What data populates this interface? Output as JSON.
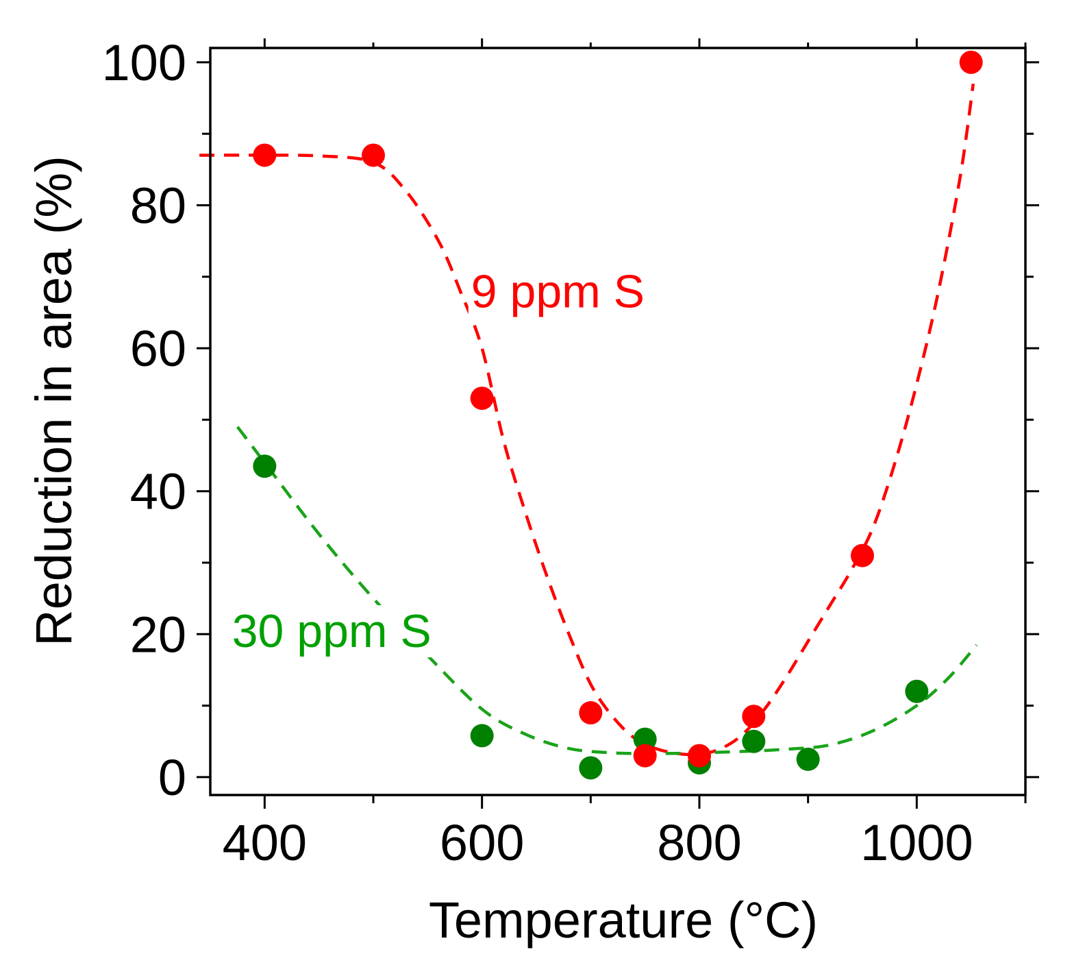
{
  "chart_data": {
    "type": "scatter",
    "title": "",
    "xlabel": "Temperature (°C)",
    "ylabel": "Reduction in area (%)",
    "xlim": [
      350,
      1100
    ],
    "ylim": [
      -2.5,
      102
    ],
    "xticks_major": [
      400,
      600,
      800,
      1000
    ],
    "xticks_minor": [
      500,
      700,
      900,
      1100
    ],
    "yticks_major": [
      0,
      20,
      40,
      60,
      80,
      100
    ],
    "yticks_minor": [
      10,
      30,
      50,
      70,
      90
    ],
    "grid": false,
    "series": [
      {
        "name": "9 ppm S",
        "color": "#ff0000",
        "points": [
          {
            "x": 400,
            "y": 87
          },
          {
            "x": 500,
            "y": 87
          },
          {
            "x": 600,
            "y": 53
          },
          {
            "x": 700,
            "y": 9
          },
          {
            "x": 750,
            "y": 3
          },
          {
            "x": 800,
            "y": 3
          },
          {
            "x": 850,
            "y": 8.5
          },
          {
            "x": 950,
            "y": 31
          },
          {
            "x": 1050,
            "y": 100
          }
        ],
        "fit_curve": [
          [
            340,
            87
          ],
          [
            400,
            87
          ],
          [
            450,
            86.9
          ],
          [
            500,
            86
          ],
          [
            530,
            82
          ],
          [
            560,
            75
          ],
          [
            580,
            68
          ],
          [
            600,
            60
          ],
          [
            620,
            47
          ],
          [
            640,
            37
          ],
          [
            660,
            28
          ],
          [
            680,
            20
          ],
          [
            700,
            13
          ],
          [
            720,
            8.5
          ],
          [
            740,
            5.5
          ],
          [
            760,
            4
          ],
          [
            780,
            3.3
          ],
          [
            800,
            3.2
          ],
          [
            820,
            4
          ],
          [
            840,
            6
          ],
          [
            860,
            9.5
          ],
          [
            880,
            14
          ],
          [
            900,
            19
          ],
          [
            920,
            24
          ],
          [
            940,
            29
          ],
          [
            960,
            35
          ],
          [
            980,
            44
          ],
          [
            1000,
            55
          ],
          [
            1020,
            68
          ],
          [
            1040,
            84
          ],
          [
            1052,
            97
          ]
        ]
      },
      {
        "name": "30 ppm S",
        "color": "#008000",
        "line_color": "#1aa31a",
        "points": [
          {
            "x": 400,
            "y": 43.5
          },
          {
            "x": 600,
            "y": 5.8
          },
          {
            "x": 700,
            "y": 1.3
          },
          {
            "x": 750,
            "y": 5.3
          },
          {
            "x": 800,
            "y": 2
          },
          {
            "x": 850,
            "y": 5
          },
          {
            "x": 900,
            "y": 2.5
          },
          {
            "x": 1000,
            "y": 12
          }
        ],
        "fit_curve": [
          [
            375,
            49
          ],
          [
            400,
            44
          ],
          [
            450,
            34
          ],
          [
            500,
            25
          ],
          [
            550,
            17
          ],
          [
            600,
            9.5
          ],
          [
            640,
            6
          ],
          [
            680,
            4
          ],
          [
            720,
            3.4
          ],
          [
            760,
            3.3
          ],
          [
            800,
            3.4
          ],
          [
            840,
            3.6
          ],
          [
            880,
            3.9
          ],
          [
            920,
            4.5
          ],
          [
            960,
            6.5
          ],
          [
            1000,
            10
          ],
          [
            1030,
            14
          ],
          [
            1055,
            18.5
          ]
        ]
      }
    ],
    "annotations": [
      {
        "text": "9 ppm S",
        "color": "#ff0000",
        "x": 590,
        "y": 68
      },
      {
        "text": "30 ppm S",
        "color": "#00a000",
        "x": 370,
        "y": 20.5
      }
    ]
  }
}
